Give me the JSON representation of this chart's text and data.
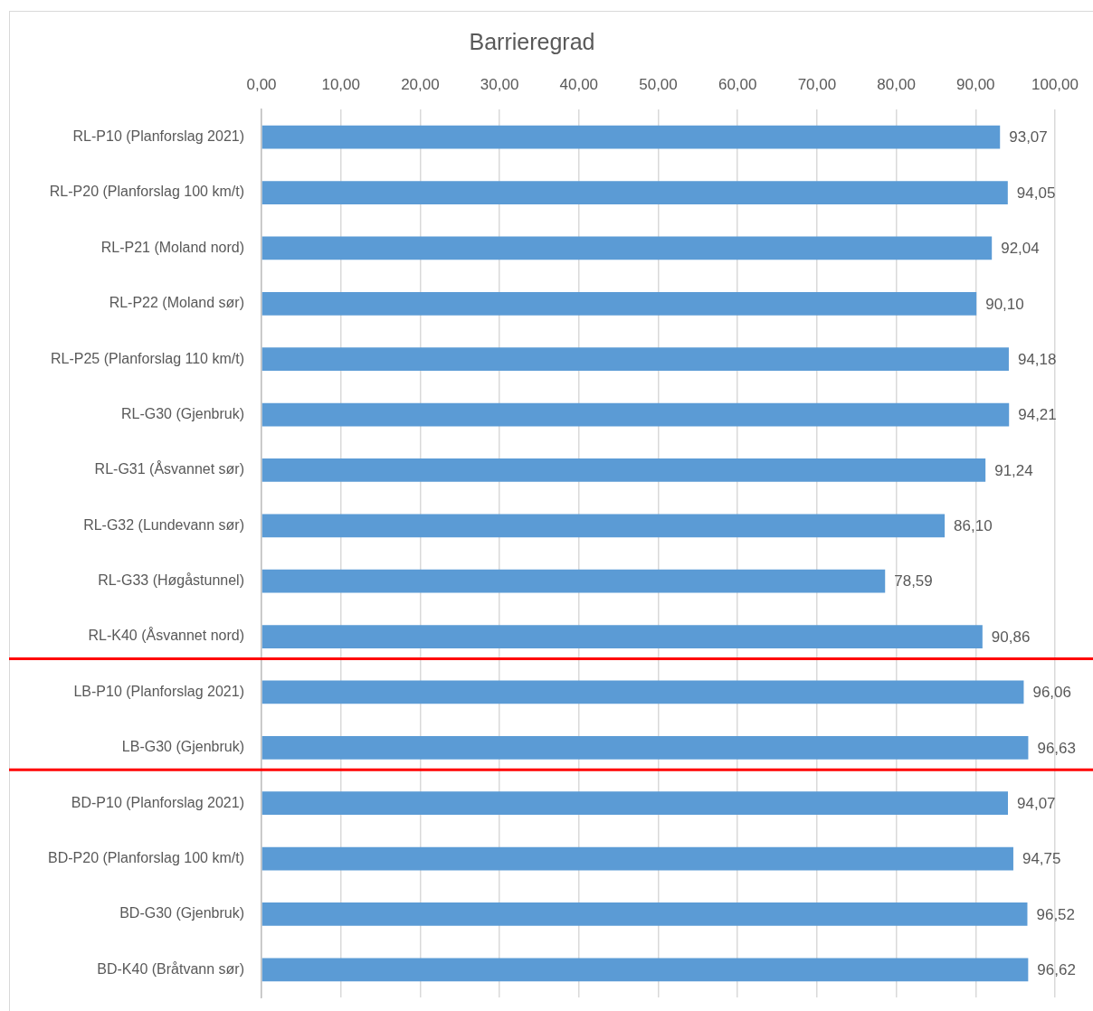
{
  "chart_data": {
    "type": "bar",
    "orientation": "horizontal",
    "title": "Barrieregrad",
    "categories": [
      "RL-P10 (Planforslag 2021)",
      "RL-P20 (Planforslag 100 km/t)",
      "RL-P21 (Moland nord)",
      "RL-P22 (Moland sør)",
      "RL-P25 (Planforslag 110 km/t)",
      "RL-G30 (Gjenbruk)",
      "RL-G31 (Åsvannet sør)",
      "RL-G32 (Lundevann sør)",
      "RL-G33 (Høgåstunnel)",
      "RL-K40 (Åsvannet nord)",
      "LB-P10 (Planforslag 2021)",
      "LB-G30 (Gjenbruk)",
      "BD-P10 (Planforslag 2021)",
      "BD-P20 (Planforslag 100 km/t)",
      "BD-G30 (Gjenbruk)",
      "BD-K40 (Bråtvann sør)"
    ],
    "values": [
      93.07,
      94.05,
      92.04,
      90.1,
      94.18,
      94.21,
      91.24,
      86.1,
      78.59,
      90.86,
      96.06,
      96.63,
      94.07,
      94.75,
      96.52,
      96.62
    ],
    "value_labels": [
      "93,07",
      "94,05",
      "92,04",
      "90,10",
      "94,18",
      "94,21",
      "91,24",
      "86,10",
      "78,59",
      "90,86",
      "96,06",
      "96,63",
      "94,07",
      "94,75",
      "96,52",
      "96,62"
    ],
    "color": "#5b9bd5",
    "xlim": [
      0,
      100
    ],
    "xticks": [
      {
        "value": 0,
        "label": "0,00"
      },
      {
        "value": 10,
        "label": "10,00"
      },
      {
        "value": 20,
        "label": "20,00"
      },
      {
        "value": 30,
        "label": "30,00"
      },
      {
        "value": 40,
        "label": "40,00"
      },
      {
        "value": 50,
        "label": "50,00"
      },
      {
        "value": 60,
        "label": "60,00"
      },
      {
        "value": 70,
        "label": "70,00"
      },
      {
        "value": 80,
        "label": "80,00"
      },
      {
        "value": 90,
        "label": "90,00"
      },
      {
        "value": 100,
        "label": "100,00"
      }
    ],
    "grid": "x"
  }
}
